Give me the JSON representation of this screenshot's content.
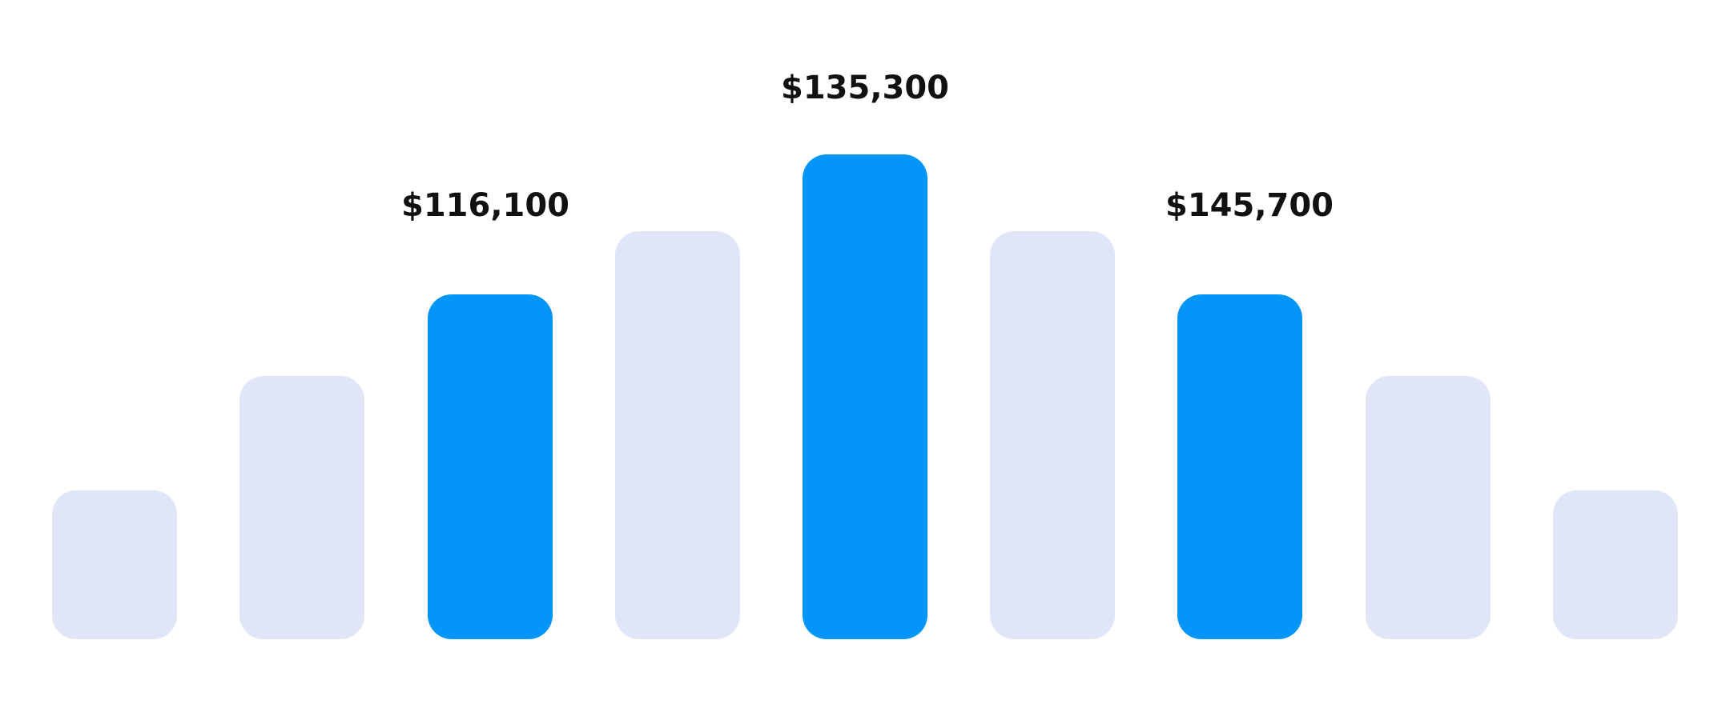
{
  "price_labels": [
    "$116,100",
    "$135,300",
    "$145,700"
  ]
}
